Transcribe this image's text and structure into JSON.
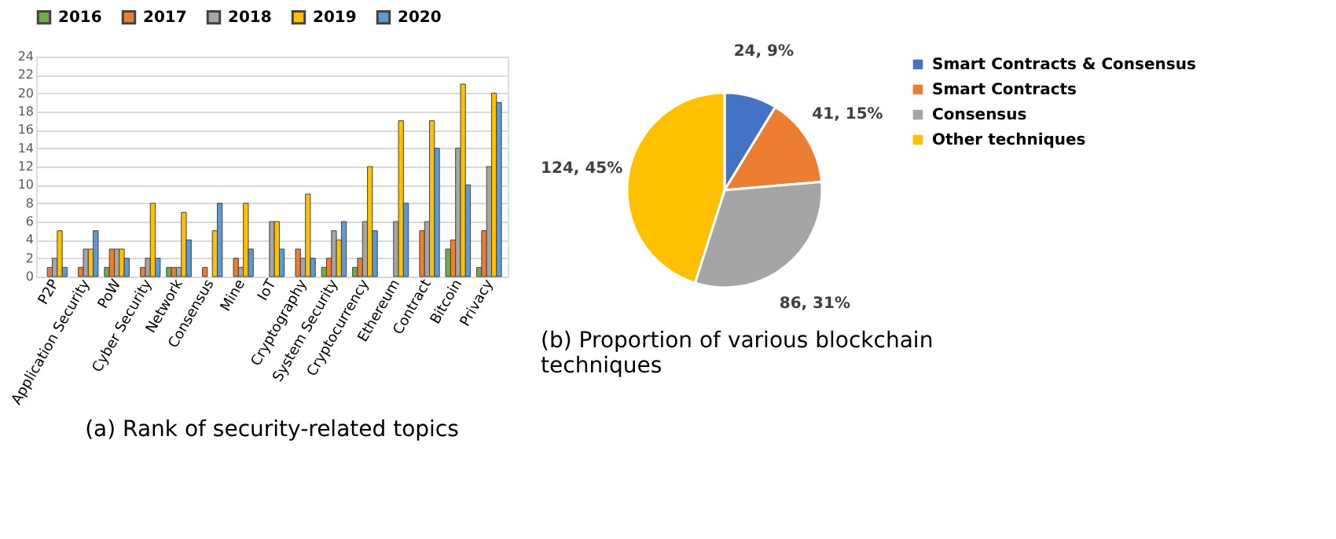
{
  "chart_data": [
    {
      "type": "bar",
      "title": "(a) Rank of security-related topics",
      "categories": [
        "P2P",
        "Application Security",
        "PoW",
        "Cyber Security",
        "Network",
        "Consensus",
        "Mine",
        "IoT",
        "Cryptography",
        "System Security",
        "Cryptocurrency",
        "Ethereum",
        "Contract",
        "Bitcoin",
        "Privacy"
      ],
      "series": [
        {
          "name": "2016",
          "color": "#70ad47",
          "values": [
            null,
            null,
            1,
            null,
            1,
            null,
            null,
            null,
            null,
            1,
            1,
            null,
            null,
            3,
            1
          ]
        },
        {
          "name": "2017",
          "color": "#ed7d31",
          "values": [
            1,
            1,
            3,
            1,
            1,
            1,
            2,
            null,
            3,
            2,
            2,
            null,
            5,
            4,
            5
          ]
        },
        {
          "name": "2018",
          "color": "#a5a5a5",
          "values": [
            2,
            3,
            3,
            2,
            1,
            null,
            1,
            6,
            2,
            5,
            6,
            6,
            6,
            14,
            12
          ]
        },
        {
          "name": "2019",
          "color": "#ffc000",
          "values": [
            5,
            3,
            3,
            8,
            7,
            5,
            8,
            6,
            9,
            4,
            12,
            17,
            17,
            21,
            20
          ]
        },
        {
          "name": "2020",
          "color": "#5b9bd5",
          "values": [
            1,
            5,
            2,
            2,
            4,
            8,
            3,
            3,
            2,
            6,
            5,
            8,
            14,
            10,
            19
          ]
        }
      ],
      "ylim": [
        0,
        24
      ],
      "yticks": [
        0,
        2,
        4,
        6,
        8,
        10,
        12,
        14,
        16,
        18,
        20,
        22,
        24
      ],
      "grid": "y",
      "legend": "top"
    },
    {
      "type": "pie",
      "title": "(b) Proportion of various blockchain techniques",
      "categories": [
        "Smart Contracts & Consensus",
        "Smart Contracts",
        "Consensus",
        "Other techniques"
      ],
      "values": [
        24,
        41,
        86,
        124
      ],
      "colors": [
        "#4472c4",
        "#ed7d31",
        "#a5a5a5",
        "#ffc000"
      ],
      "value_labels": [
        "24, 9%",
        "41, 15%",
        "86, 31%",
        "124, 45%"
      ],
      "legend": "right"
    }
  ]
}
